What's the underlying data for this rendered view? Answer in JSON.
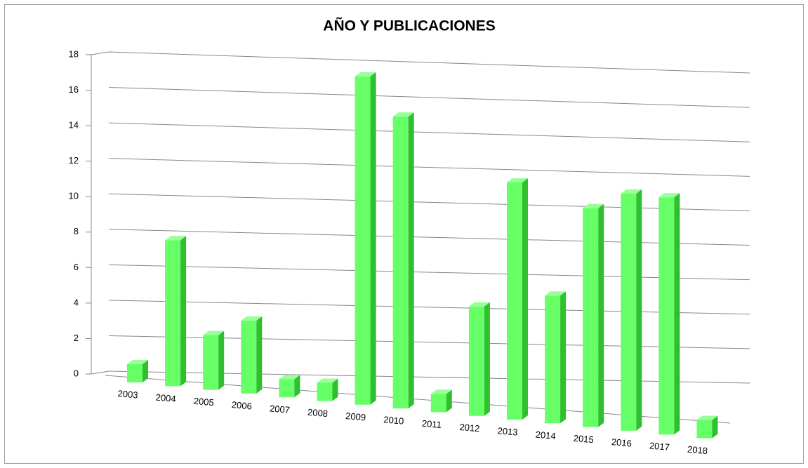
{
  "chart_data": {
    "type": "bar3d",
    "title": "AÑO Y PUBLICACIONES",
    "categories": [
      "2003",
      "2004",
      "2005",
      "2006",
      "2007",
      "2008",
      "2009",
      "2010",
      "2011",
      "2012",
      "2013",
      "2014",
      "2015",
      "2016",
      "2017",
      "2018"
    ],
    "values": [
      1,
      8,
      3,
      4,
      1,
      1,
      18,
      16,
      1,
      6,
      13,
      7,
      12,
      13,
      13,
      1
    ],
    "color": "#66ff66",
    "ylim": [
      0,
      18
    ],
    "yticks": [
      0,
      2,
      4,
      6,
      8,
      10,
      12,
      14,
      16,
      18
    ],
    "grid": true
  }
}
